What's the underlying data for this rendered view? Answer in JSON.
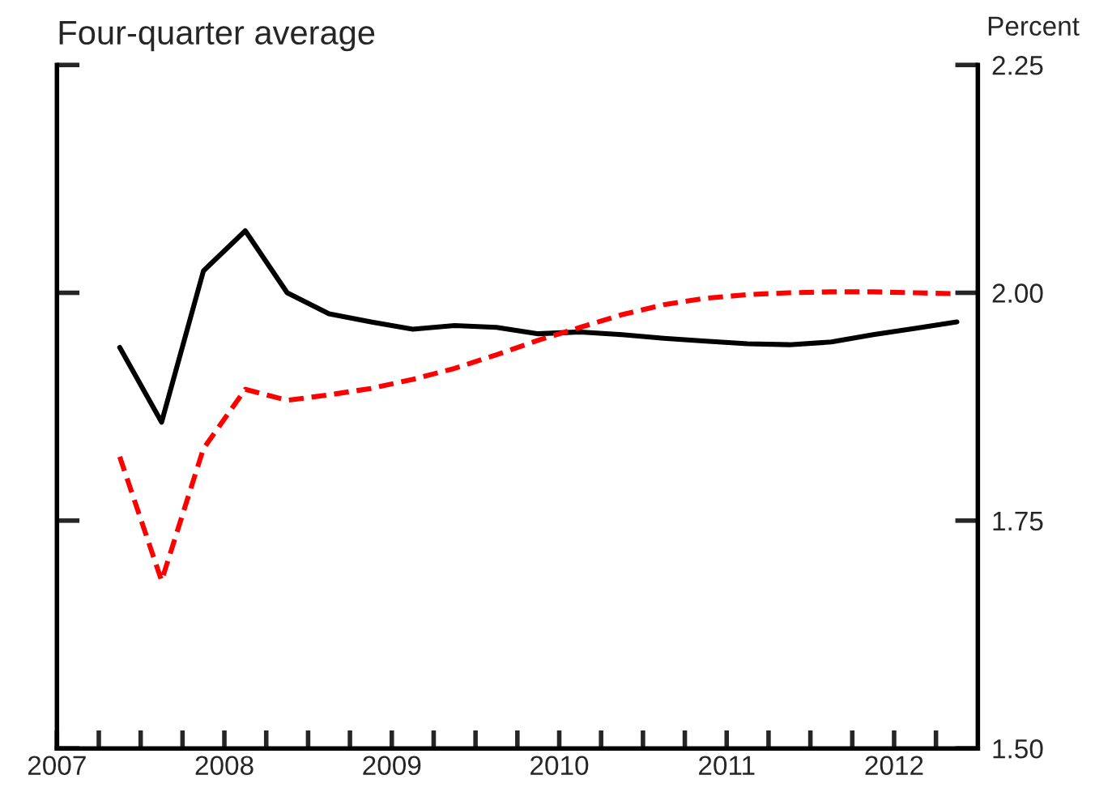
{
  "chart_data": {
    "type": "line",
    "title": "Four-quarter average",
    "ylabel": "Percent",
    "x": [
      2007.375,
      2007.625,
      2007.875,
      2008.125,
      2008.375,
      2008.625,
      2008.875,
      2009.125,
      2009.375,
      2009.625,
      2009.875,
      2010.125,
      2010.375,
      2010.625,
      2010.875,
      2011.125,
      2011.375,
      2011.625,
      2011.875,
      2012.125,
      2012.375
    ],
    "series": [
      {
        "color": "#000000",
        "line_style": "solid",
        "values": [
          1.94,
          1.858,
          2.024,
          2.068,
          2.0,
          1.977,
          1.968,
          1.96,
          1.964,
          1.962,
          1.955,
          1.957,
          1.954,
          1.95,
          1.947,
          1.944,
          1.943,
          1.946,
          1.954,
          1.961,
          1.968
        ]
      },
      {
        "color": "#ff0000",
        "line_style": "dashed",
        "values": [
          1.82,
          1.684,
          1.829,
          1.894,
          1.882,
          1.888,
          1.895,
          1.905,
          1.917,
          1.932,
          1.948,
          1.962,
          1.976,
          1.987,
          1.994,
          1.998,
          2.0,
          2.001,
          2.001,
          2.0,
          1.999
        ]
      }
    ],
    "xlim": [
      2007,
      2012.5
    ],
    "xticks": [
      2007,
      {
        "value": 2007.25,
        "label": null
      },
      {
        "value": 2007.5,
        "label": null
      },
      {
        "value": 2007.75,
        "label": null
      },
      2008,
      {
        "value": 2008.25,
        "label": null
      },
      {
        "value": 2008.5,
        "label": null
      },
      {
        "value": 2008.75,
        "label": null
      },
      2009,
      {
        "value": 2009.25,
        "label": null
      },
      {
        "value": 2009.5,
        "label": null
      },
      {
        "value": 2009.75,
        "label": null
      },
      2010,
      {
        "value": 2010.25,
        "label": null
      },
      {
        "value": 2010.5,
        "label": null
      },
      {
        "value": 2010.75,
        "label": null
      },
      2011,
      {
        "value": 2011.25,
        "label": null
      },
      {
        "value": 2011.5,
        "label": null
      },
      {
        "value": 2011.75,
        "label": null
      },
      2012,
      {
        "value": 2012.25,
        "label": null
      }
    ],
    "ylim": [
      1.5,
      2.25
    ],
    "yticks": [
      {
        "value": 1.5,
        "label": "1.50"
      },
      {
        "value": 1.75,
        "label": "1.75"
      },
      {
        "value": 2.0,
        "label": "2.00"
      },
      {
        "value": 2.25,
        "label": "2.25"
      }
    ],
    "grid": false,
    "marker": "none"
  }
}
